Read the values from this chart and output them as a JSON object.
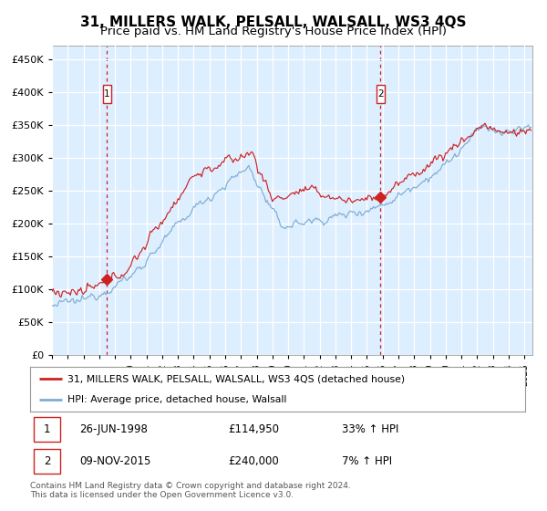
{
  "title": "31, MILLERS WALK, PELSALL, WALSALL, WS3 4QS",
  "subtitle": "Price paid vs. HM Land Registry's House Price Index (HPI)",
  "legend_line1": "31, MILLERS WALK, PELSALL, WALSALL, WS3 4QS (detached house)",
  "legend_line2": "HPI: Average price, detached house, Walsall",
  "table_rows": [
    {
      "num": "1",
      "date": "26-JUN-1998",
      "price": "£114,950",
      "hpi": "33% ↑ HPI"
    },
    {
      "num": "2",
      "date": "09-NOV-2015",
      "price": "£240,000",
      "hpi": "7% ↑ HPI"
    }
  ],
  "footnote1": "Contains HM Land Registry data © Crown copyright and database right 2024.",
  "footnote2": "This data is licensed under the Open Government Licence v3.0.",
  "sale1_date_num": 1998.49,
  "sale1_price": 114950,
  "sale2_date_num": 2015.86,
  "sale2_price": 240000,
  "red_line_color": "#cc2222",
  "blue_line_color": "#7dadd4",
  "background_color": "#ddeeff",
  "grid_color": "#ffffff",
  "title_fontsize": 11,
  "subtitle_fontsize": 9.5,
  "ylim": [
    0,
    470000
  ],
  "xlim_start": 1995.0,
  "xlim_end": 2025.5
}
